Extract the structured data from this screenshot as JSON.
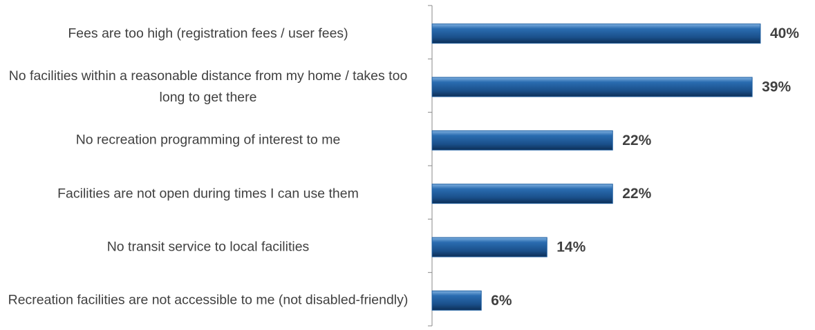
{
  "chart_data": {
    "type": "bar",
    "orientation": "horizontal",
    "categories": [
      "Fees are too high (registration fees / user fees)",
      "No facilities within a reasonable distance from my home / takes too long to get there",
      "No recreation programming of interest to me",
      "Facilities are not open during times I can use them",
      "No transit service to local facilities",
      "Recreation facilities are not accessible to me (not disabled-friendly)"
    ],
    "values": [
      40,
      39,
      22,
      22,
      14,
      6
    ],
    "value_labels": [
      "40%",
      "39%",
      "22%",
      "22%",
      "14%",
      "6%"
    ],
    "color": "#1f5fa0",
    "xlim": [
      0,
      46
    ]
  }
}
